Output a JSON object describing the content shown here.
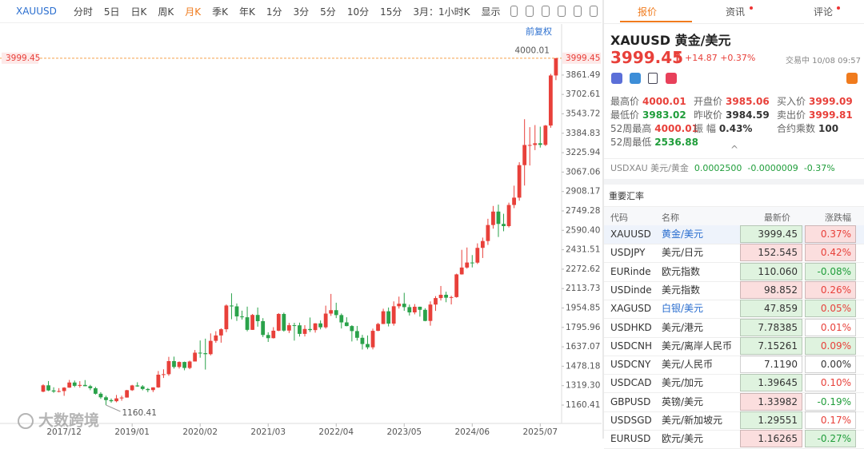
{
  "toolbar": {
    "items": [
      "XAUUSD",
      "分时",
      "5日",
      "日K",
      "周K",
      "月K",
      "季K",
      "年K",
      "1分",
      "3分",
      "5分",
      "10分",
      "15分",
      "3月：1小时K",
      "显示"
    ],
    "adjust": "前复权"
  },
  "chart_data": {
    "type": "candlestick",
    "watermark": "大数跨境",
    "up_color": "#e8403a",
    "down_color": "#2aa24a",
    "last_price": 3999.45,
    "last_color": "#f5a04a",
    "categories": [
      null,
      null,
      null,
      null,
      "2017/12",
      null,
      null,
      null,
      null,
      null,
      null,
      null,
      null,
      null,
      null,
      null,
      null,
      "2019/01",
      null,
      null,
      null,
      null,
      null,
      null,
      null,
      null,
      null,
      null,
      null,
      null,
      "2020/02",
      null,
      null,
      null,
      null,
      null,
      null,
      null,
      null,
      null,
      null,
      null,
      null,
      "2021/03",
      null,
      null,
      null,
      null,
      null,
      null,
      null,
      null,
      null,
      null,
      null,
      null,
      "2022/04",
      null,
      null,
      null,
      null,
      null,
      null,
      null,
      null,
      null,
      null,
      null,
      null,
      "2023/05",
      null,
      null,
      null,
      null,
      null,
      null,
      null,
      null,
      null,
      null,
      null,
      null,
      "2024/06",
      null,
      null,
      null,
      null,
      null,
      null,
      null,
      null,
      null,
      null,
      null,
      null,
      "2025/07",
      null,
      null,
      null
    ],
    "candles": [
      [
        1270,
        1330,
        1266,
        1322
      ],
      [
        1322,
        1357,
        1275,
        1280
      ],
      [
        1280,
        1306,
        1260,
        1271
      ],
      [
        1271,
        1299,
        1264,
        1275
      ],
      [
        1275,
        1307,
        1236,
        1303
      ],
      [
        1303,
        1366,
        1302,
        1345
      ],
      [
        1345,
        1361,
        1307,
        1318
      ],
      [
        1318,
        1356,
        1303,
        1325
      ],
      [
        1325,
        1365,
        1314,
        1315
      ],
      [
        1315,
        1326,
        1282,
        1298
      ],
      [
        1298,
        1309,
        1246,
        1253
      ],
      [
        1253,
        1266,
        1211,
        1224
      ],
      [
        1224,
        1237,
        1160.41,
        1201
      ],
      [
        1201,
        1214,
        1180,
        1192
      ],
      [
        1192,
        1243,
        1183,
        1215
      ],
      [
        1215,
        1237,
        1196,
        1222
      ],
      [
        1222,
        1285,
        1221,
        1282
      ],
      [
        1282,
        1326,
        1276,
        1321
      ],
      [
        1321,
        1347,
        1310,
        1313
      ],
      [
        1313,
        1324,
        1281,
        1292
      ],
      [
        1292,
        1300,
        1266,
        1283
      ],
      [
        1283,
        1306,
        1267,
        1305
      ],
      [
        1305,
        1439,
        1301,
        1409
      ],
      [
        1409,
        1453,
        1382,
        1413
      ],
      [
        1413,
        1555,
        1400,
        1520
      ],
      [
        1520,
        1557,
        1459,
        1472
      ],
      [
        1472,
        1518,
        1459,
        1513
      ],
      [
        1513,
        1516,
        1445,
        1464
      ],
      [
        1464,
        1524,
        1454,
        1517
      ],
      [
        1517,
        1611,
        1517,
        1589
      ],
      [
        1589,
        1689,
        1548,
        1585
      ],
      [
        1585,
        1704,
        1451,
        1577
      ],
      [
        1577,
        1747,
        1567,
        1686
      ],
      [
        1686,
        1765,
        1670,
        1730
      ],
      [
        1730,
        1789,
        1671,
        1781
      ],
      [
        1781,
        1984,
        1757,
        1975
      ],
      [
        1975,
        2075,
        1863,
        1968
      ],
      [
        1968,
        1992,
        1849,
        1886
      ],
      [
        1886,
        1933,
        1860,
        1879
      ],
      [
        1879,
        1966,
        1764,
        1776
      ],
      [
        1776,
        1906,
        1775,
        1898
      ],
      [
        1898,
        1959,
        1802,
        1847
      ],
      [
        1847,
        1872,
        1717,
        1734
      ],
      [
        1734,
        1756,
        1677,
        1708
      ],
      [
        1708,
        1798,
        1705,
        1769
      ],
      [
        1769,
        1913,
        1765,
        1906
      ],
      [
        1906,
        1917,
        1761,
        1770
      ],
      [
        1770,
        1833,
        1750,
        1814
      ],
      [
        1814,
        1834,
        1688,
        1813
      ],
      [
        1813,
        1835,
        1721,
        1743
      ],
      [
        1743,
        1814,
        1722,
        1783
      ],
      [
        1783,
        1877,
        1758,
        1774
      ],
      [
        1774,
        1831,
        1753,
        1829
      ],
      [
        1829,
        1853,
        1780,
        1797
      ],
      [
        1797,
        1974,
        1786,
        1909
      ],
      [
        1909,
        2070,
        1890,
        1937
      ],
      [
        1937,
        1998,
        1872,
        1897
      ],
      [
        1897,
        1910,
        1787,
        1837
      ],
      [
        1837,
        1879,
        1805,
        1807
      ],
      [
        1807,
        1814,
        1681,
        1766
      ],
      [
        1766,
        1808,
        1688,
        1711
      ],
      [
        1711,
        1735,
        1615,
        1660
      ],
      [
        1660,
        1730,
        1617,
        1633
      ],
      [
        1633,
        1786,
        1616,
        1768
      ],
      [
        1768,
        1833,
        1765,
        1824
      ],
      [
        1824,
        1949,
        1823,
        1928
      ],
      [
        1928,
        1959,
        1804,
        1827
      ],
      [
        1827,
        2009,
        1810,
        1969
      ],
      [
        1969,
        2048,
        1950,
        1990
      ],
      [
        1990,
        2079,
        1932,
        1962
      ],
      [
        1962,
        1983,
        1893,
        1919
      ],
      [
        1919,
        1987,
        1903,
        1965
      ],
      [
        1965,
        1966,
        1884,
        1940
      ],
      [
        1940,
        1953,
        1846,
        1849
      ],
      [
        1849,
        2009,
        1810,
        1983
      ],
      [
        1983,
        2052,
        1931,
        2036
      ],
      [
        2036,
        2135,
        2016,
        2063
      ],
      [
        2063,
        2088,
        2002,
        2039
      ],
      [
        2039,
        2055,
        1984,
        2044
      ],
      [
        2044,
        2236,
        2039,
        2230
      ],
      [
        2230,
        2431,
        2228,
        2286
      ],
      [
        2286,
        2450,
        2277,
        2327
      ],
      [
        2327,
        2388,
        2287,
        2326
      ],
      [
        2326,
        2484,
        2315,
        2447
      ],
      [
        2447,
        2531,
        2364,
        2503
      ],
      [
        2503,
        2685,
        2471,
        2634
      ],
      [
        2634,
        2790,
        2604,
        2744
      ],
      [
        2744,
        2801,
        2536,
        2643
      ],
      [
        2643,
        2726,
        2583,
        2625
      ],
      [
        2625,
        2817,
        2614,
        2798
      ],
      [
        2798,
        2956,
        2772,
        2858
      ],
      [
        2858,
        3148,
        2833,
        3124
      ],
      [
        3124,
        3500,
        2957,
        3289
      ],
      [
        3289,
        3435,
        3121,
        3289
      ],
      [
        3289,
        3452,
        3247,
        3303
      ],
      [
        3303,
        3439,
        3268,
        3290
      ],
      [
        3290,
        3453,
        3281,
        3448
      ],
      [
        3448,
        3871,
        3430,
        3858
      ],
      [
        3858,
        4000.01,
        3820,
        3999.45
      ]
    ],
    "ylim": [
      1010,
      4116
    ],
    "yticks": [
      1160.41,
      {
        "value": 1319.3,
        "label": "1319.30"
      },
      1478.18,
      1637.07,
      1795.96,
      1954.85,
      2113.73,
      2272.62,
      2431.51,
      {
        "value": 2590.4,
        "label": "2590.40"
      },
      2749.28,
      2908.17,
      3067.06,
      3225.94,
      3384.83,
      3543.72,
      3702.61,
      3861.49
    ]
  },
  "panel": {
    "tabs": [
      "报价",
      "资讯",
      "评论"
    ],
    "quote": {
      "symbol": "XAUUSD",
      "name": "黄金/美元",
      "price": "3999.45",
      "arrow": "↑",
      "change": "+14.87",
      "change_pct": "+0.37%",
      "status": "交易中 10/08 09:57",
      "stats": [
        {
          "label": "最高价",
          "value": "4000.01",
          "color": "#e8403a"
        },
        {
          "label": "开盘价",
          "value": "3985.06",
          "color": "#e8403a"
        },
        {
          "label": "买入价",
          "value": "3999.09",
          "color": "#e8403a"
        },
        {
          "label": "最低价",
          "value": "3983.02",
          "color": "#1f9d3a"
        },
        {
          "label": "昨收价",
          "value": "3984.59",
          "color": "#333333"
        },
        {
          "label": "卖出价",
          "value": "3999.81",
          "color": "#e8403a"
        },
        {
          "label": "52周最高",
          "value": "4000.01",
          "color": "#e8403a"
        },
        {
          "label": "振 幅",
          "value": "0.43%",
          "color": "#333333"
        },
        {
          "label": "合约乘数",
          "value": "100",
          "color": "#333333"
        },
        {
          "label": "52周最低",
          "value": "2536.88",
          "color": "#1f9d3a"
        }
      ],
      "inverse": {
        "symbol": "USDXAU",
        "name": "美元/黄金",
        "price": "0.0002500",
        "change": "-0.0000009",
        "change_pct": "-0.37%"
      }
    },
    "rates": {
      "title": "重要汇率",
      "columns": [
        "代码",
        "名称",
        "最新价",
        "涨跌幅"
      ],
      "rows": [
        {
          "code": "XAUUSD",
          "name": "黄金/美元",
          "price": "3999.45",
          "change": "0.37%",
          "name_color": "#2a6ecf",
          "price_bg": "#dff3df",
          "change_bg": "#fbdede"
        },
        {
          "code": "USDJPY",
          "name": "美元/日元",
          "price": "152.545",
          "change": "0.42%",
          "price_bg": "#fbdede",
          "change_bg": "#fbdede"
        },
        {
          "code": "EURinde",
          "name": "欧元指数",
          "price": "110.060",
          "change": "-0.08%",
          "price_bg": "#dff3df",
          "change_bg": "#dff3df"
        },
        {
          "code": "USDinde",
          "name": "美元指数",
          "price": "98.852",
          "change": "0.26%",
          "price_bg": "#fbdede",
          "change_bg": "#fbdede"
        },
        {
          "code": "XAGUSD",
          "name": "白银/美元",
          "price": "47.859",
          "change": "0.05%",
          "name_color": "#2a6ecf",
          "price_bg": "#dff3df",
          "change_bg": "#dff3df"
        },
        {
          "code": "USDHKD",
          "name": "美元/港元",
          "price": "7.78385",
          "change": "0.01%",
          "price_bg": "#dff3df"
        },
        {
          "code": "USDCNH",
          "name": "美元/离岸人民币",
          "price": "7.15261",
          "change": "0.09%",
          "price_bg": "#dff3df",
          "change_bg": "#dff3df"
        },
        {
          "code": "USDCNY",
          "name": "美元/人民币",
          "price": "7.1190",
          "change": "0.00%"
        },
        {
          "code": "USDCAD",
          "name": "美元/加元",
          "price": "1.39645",
          "change": "0.10%",
          "price_bg": "#dff3df"
        },
        {
          "code": "GBPUSD",
          "name": "英镑/美元",
          "price": "1.33982",
          "change": "-0.19%",
          "price_bg": "#fbdede"
        },
        {
          "code": "USDSGD",
          "name": "美元/新加坡元",
          "price": "1.29551",
          "change": "0.17%",
          "price_bg": "#dff3df"
        },
        {
          "code": "EURUSD",
          "name": "欧元/美元",
          "price": "1.16265",
          "change": "-0.27%",
          "price_bg": "#fbdede",
          "change_bg": "#dff3df"
        }
      ]
    }
  }
}
